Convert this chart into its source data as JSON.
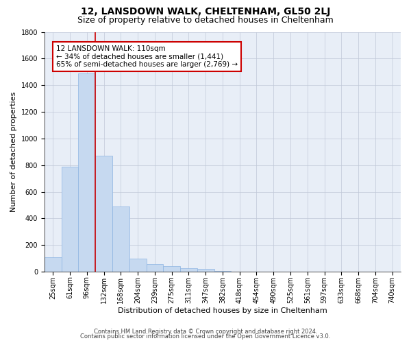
{
  "title": "12, LANSDOWN WALK, CHELTENHAM, GL50 2LJ",
  "subtitle": "Size of property relative to detached houses in Cheltenham",
  "xlabel": "Distribution of detached houses by size in Cheltenham",
  "ylabel": "Number of detached properties",
  "footnote1": "Contains HM Land Registry data © Crown copyright and database right 2024.",
  "footnote2": "Contains public sector information licensed under the Open Government Licence v3.0.",
  "bar_labels": [
    "25sqm",
    "61sqm",
    "96sqm",
    "132sqm",
    "168sqm",
    "204sqm",
    "239sqm",
    "275sqm",
    "311sqm",
    "347sqm",
    "382sqm",
    "418sqm",
    "454sqm",
    "490sqm",
    "525sqm",
    "561sqm",
    "597sqm",
    "633sqm",
    "668sqm",
    "704sqm",
    "740sqm"
  ],
  "bar_values": [
    110,
    790,
    1490,
    870,
    490,
    100,
    60,
    40,
    25,
    20,
    5,
    3,
    2,
    1,
    1,
    0,
    0,
    0,
    0,
    0,
    0
  ],
  "bar_color": "#c6d9f0",
  "bar_edge_color": "#8db4e2",
  "property_label": "12 LANSDOWN WALK: 110sqm",
  "pct_smaller": 34,
  "n_smaller": 1441,
  "pct_larger": 65,
  "n_larger": 2769,
  "vline_x": 2.5,
  "vline_color": "#cc0000",
  "annotation_box_color": "#cc0000",
  "ylim": [
    0,
    1800
  ],
  "yticks": [
    0,
    200,
    400,
    600,
    800,
    1000,
    1200,
    1400,
    1600,
    1800
  ],
  "grid_color": "#c0c8d8",
  "bg_color": "#e8eef7",
  "title_fontsize": 10,
  "subtitle_fontsize": 9,
  "axis_label_fontsize": 8,
  "tick_fontsize": 7,
  "annot_fontsize": 7.5
}
